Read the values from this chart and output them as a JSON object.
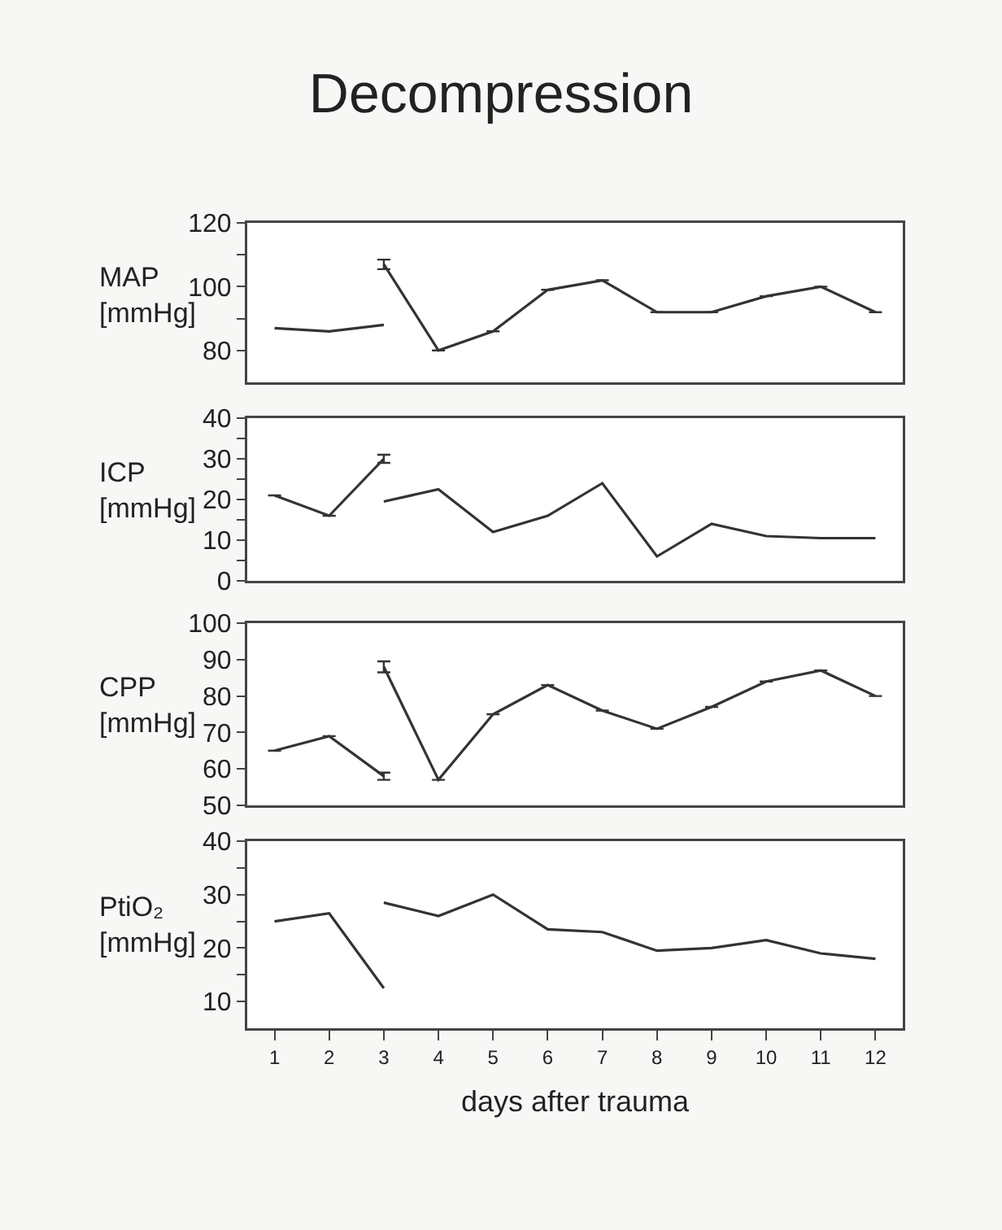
{
  "chart_data": [
    {
      "type": "line",
      "title": "Decompression",
      "ylabel": "MAP [mmHg]",
      "xlim": [
        0.5,
        12.5
      ],
      "ylim": [
        70,
        120
      ],
      "yticks": [
        80,
        {
          "value": 90,
          "label": null
        },
        100,
        {
          "value": 110,
          "label": null
        },
        120
      ],
      "tick_labels": "y",
      "series": [
        {
          "color": "#333333",
          "x": [
            1,
            2,
            3
          ],
          "values": [
            87,
            86,
            88
          ]
        },
        {
          "color": "#333333",
          "x": [
            3,
            4,
            5,
            6,
            7,
            8,
            9,
            10,
            11,
            12
          ],
          "values": [
            107,
            80,
            86,
            99,
            102,
            92,
            92,
            97,
            100,
            92
          ],
          "errors": [
            1.5,
            null,
            null,
            null,
            null,
            null,
            null,
            null,
            null,
            null
          ]
        }
      ]
    },
    {
      "type": "line",
      "ylabel": "ICP [mmHg]",
      "xlim": [
        0.5,
        12.5
      ],
      "ylim": [
        0,
        40
      ],
      "yticks": [
        0,
        {
          "value": 5,
          "label": null
        },
        10,
        {
          "value": 15,
          "label": null
        },
        20,
        {
          "value": 25,
          "label": null
        },
        30,
        {
          "value": 35,
          "label": null
        },
        40
      ],
      "tick_labels": "y",
      "series": [
        {
          "color": "#333333",
          "x": [
            1,
            2,
            3
          ],
          "values": [
            21,
            16,
            30
          ],
          "errors": [
            null,
            null,
            1
          ]
        },
        {
          "color": "#333333",
          "x": [
            3,
            4,
            5,
            6,
            7,
            8,
            9,
            10,
            11,
            12
          ],
          "values": [
            19.5,
            22.5,
            12,
            16,
            24,
            6,
            14,
            11,
            10.5,
            10.5
          ]
        }
      ]
    },
    {
      "type": "line",
      "ylabel": "CPP [mmHg]",
      "xlim": [
        0.5,
        12.5
      ],
      "ylim": [
        50,
        100
      ],
      "yticks": [
        50,
        60,
        70,
        80,
        90,
        100
      ],
      "tick_labels": "y",
      "series": [
        {
          "color": "#333333",
          "x": [
            1,
            2,
            3
          ],
          "values": [
            65,
            69,
            58
          ],
          "errors": [
            null,
            null,
            1
          ]
        },
        {
          "color": "#333333",
          "x": [
            3,
            4,
            5,
            6,
            7,
            8,
            9,
            10,
            11,
            12
          ],
          "values": [
            88,
            57,
            75,
            83,
            76,
            71,
            77,
            84,
            87,
            80
          ],
          "errors": [
            1.5,
            null,
            null,
            null,
            null,
            null,
            null,
            null,
            null,
            null
          ]
        }
      ]
    },
    {
      "type": "line",
      "ylabel": "PtiO₂ [mmHg]",
      "xlabel": "days after trauma",
      "xlim": [
        0.5,
        12.5
      ],
      "xticks": [
        1,
        2,
        3,
        4,
        5,
        6,
        7,
        8,
        9,
        10,
        11,
        12
      ],
      "ylim": [
        5,
        40
      ],
      "yticks": [
        10,
        {
          "value": 15,
          "label": null
        },
        20,
        {
          "value": 25,
          "label": null
        },
        30,
        {
          "value": 35,
          "label": null
        },
        40
      ],
      "series": [
        {
          "color": "#333333",
          "x": [
            1,
            2,
            3
          ],
          "values": [
            25,
            26.5,
            12.5
          ]
        },
        {
          "color": "#333333",
          "x": [
            3,
            4,
            5,
            6,
            7,
            8,
            9,
            10,
            11,
            12
          ],
          "values": [
            28.5,
            26,
            30,
            23.5,
            23,
            19.5,
            20,
            21.5,
            19,
            18
          ]
        }
      ]
    }
  ]
}
